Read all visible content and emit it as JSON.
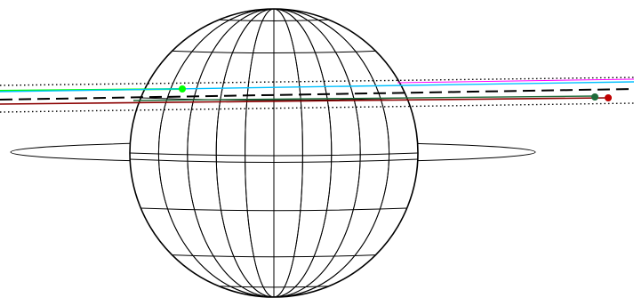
{
  "figure": {
    "globe": {
      "description_visible_text": "",
      "meridian_count": 10,
      "parallel_count": 8
    },
    "ring": {
      "description_visible_text": ""
    },
    "trajectories": [
      {
        "name": "",
        "color": "#00ff00"
      },
      {
        "name": "",
        "color": "#00c0ff"
      },
      {
        "name": "",
        "color": "#8b0000"
      },
      {
        "name": "",
        "color": "#1f6b3a"
      }
    ],
    "markers": [
      {
        "color": "#00ff00"
      },
      {
        "color": "#1f6b3a"
      },
      {
        "color": "#c00000"
      }
    ],
    "reference_lines": {
      "dashed_color": "#000000",
      "dotted_color": "#000000",
      "magenta_color": "#ff00ff"
    }
  }
}
